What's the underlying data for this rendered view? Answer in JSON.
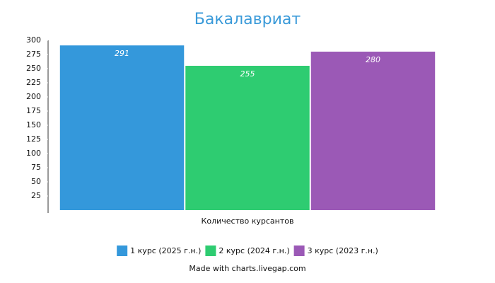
{
  "chart_data": {
    "type": "bar",
    "title": "Бакалавриат",
    "categories": [
      "Количество курсантов"
    ],
    "series": [
      {
        "name": "1 курс (2025 г.н.)",
        "color": "#3498db",
        "values": [
          291
        ]
      },
      {
        "name": "2 курс (2024 г.н.)",
        "color": "#2ecc71",
        "values": [
          255
        ]
      },
      {
        "name": "3 курс (2023 г.н.)",
        "color": "#9b59b6",
        "values": [
          280
        ]
      }
    ],
    "ylim": [
      0,
      300
    ],
    "yticks": [
      25,
      50,
      75,
      100,
      125,
      150,
      175,
      200,
      225,
      250,
      275,
      300
    ],
    "legend": "bottom",
    "credit": "Made with charts.livegap.com"
  }
}
